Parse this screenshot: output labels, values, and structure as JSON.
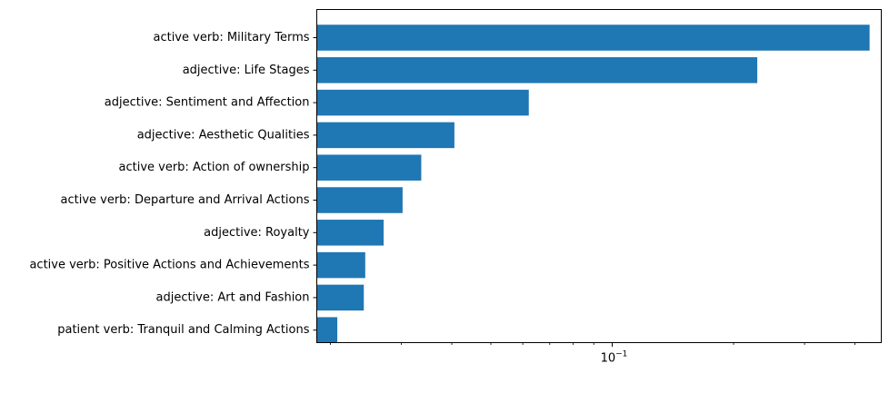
{
  "chart_data": {
    "type": "bar",
    "orientation": "horizontal",
    "xscale": "log",
    "color": "#1f77b4",
    "grid": false,
    "xlim": [
      0.0185,
      0.465
    ],
    "categories": [
      "active verb: Military Terms",
      "adjective: Life Stages",
      "adjective: Sentiment and Affection",
      "adjective: Aesthetic Qualities",
      "active verb: Action of ownership",
      "active verb: Departure and Arrival Actions",
      "adjective: Royalty",
      "active verb: Positive Actions and Achievements",
      "adjective: Art and Fashion",
      "patient verb: Tranquil and Calming Actions"
    ],
    "values": [
      0.435,
      0.229,
      0.0621,
      0.0406,
      0.0336,
      0.0302,
      0.0271,
      0.0244,
      0.0242,
      0.0208
    ],
    "xticks": [
      {
        "value": 0.1,
        "base": "10",
        "exp": "−1"
      }
    ],
    "xminorticks": [
      0.02,
      0.03,
      0.04,
      0.05,
      0.06,
      0.07,
      0.08,
      0.09,
      0.2,
      0.3,
      0.4
    ]
  }
}
